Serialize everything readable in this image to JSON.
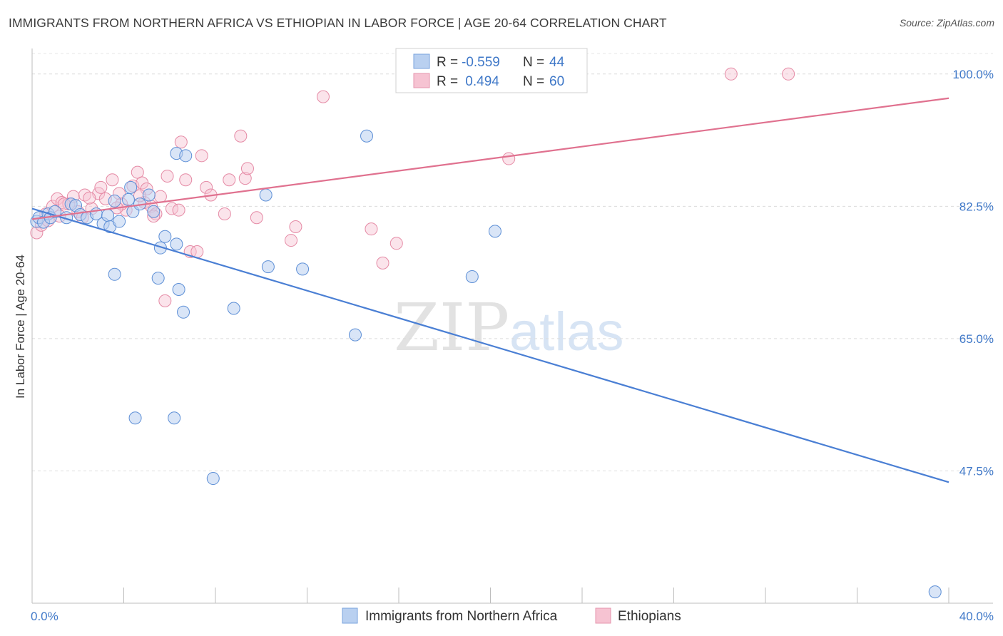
{
  "title": "IMMIGRANTS FROM NORTHERN AFRICA VS ETHIOPIAN IN LABOR FORCE | AGE 20-64 CORRELATION CHART",
  "source": "Source: ZipAtlas.com",
  "watermark": {
    "zip": "ZIP",
    "atlas": "atlas"
  },
  "colors": {
    "blue": "#4a7fd4",
    "blue_fill": "#b9d0f0",
    "pink": "#e0718f",
    "pink_fill": "#f6c3d2",
    "tick_text": "#3f78c8"
  },
  "legend": {
    "rows": [
      {
        "r_label": "R = ",
        "r_value": "-0.559",
        "n_label": "N = ",
        "n_value": "44"
      },
      {
        "r_label": "R = ",
        "r_value": " 0.494",
        "n_label": "N = ",
        "n_value": "60"
      }
    ]
  },
  "chart_data": {
    "type": "scatter",
    "xlabel": "",
    "ylabel": "In Labor Force | Age 20-64",
    "xlim": [
      0,
      40
    ],
    "ylim": [
      30,
      103
    ],
    "x_tick_labels": [
      "0.0%",
      "40.0%"
    ],
    "y_ticks": [
      {
        "value": 47.5,
        "label": "47.5%"
      },
      {
        "value": 65.0,
        "label": "65.0%"
      },
      {
        "value": 82.5,
        "label": "82.5%"
      },
      {
        "value": 100.0,
        "label": "100.0%"
      }
    ],
    "grid": "horizontal dashed",
    "legend_position": "bottom",
    "series": [
      {
        "name": "Immigrants from Northern Africa",
        "color": "#4a7fd4",
        "trend": {
          "x": [
            0,
            40
          ],
          "y": [
            82.2,
            46.0
          ]
        },
        "points": [
          [
            0.2,
            80.5
          ],
          [
            0.3,
            81.0
          ],
          [
            0.5,
            80.4
          ],
          [
            0.7,
            81.5
          ],
          [
            0.8,
            81.0
          ],
          [
            1.0,
            81.8
          ],
          [
            1.5,
            81.0
          ],
          [
            1.7,
            82.8
          ],
          [
            1.9,
            82.6
          ],
          [
            2.1,
            81.4
          ],
          [
            2.4,
            81.0
          ],
          [
            2.8,
            81.5
          ],
          [
            3.1,
            80.2
          ],
          [
            3.3,
            81.3
          ],
          [
            3.6,
            83.2
          ],
          [
            3.4,
            79.8
          ],
          [
            3.8,
            80.5
          ],
          [
            4.4,
            81.8
          ],
          [
            4.2,
            83.4
          ],
          [
            4.3,
            85.0
          ],
          [
            4.7,
            82.8
          ],
          [
            5.1,
            84.0
          ],
          [
            5.3,
            81.8
          ],
          [
            5.6,
            77.0
          ],
          [
            5.8,
            78.5
          ],
          [
            6.3,
            77.5
          ],
          [
            3.6,
            73.5
          ],
          [
            5.5,
            73.0
          ],
          [
            6.4,
            71.5
          ],
          [
            6.6,
            68.5
          ],
          [
            8.8,
            69.0
          ],
          [
            10.3,
            74.5
          ],
          [
            11.8,
            74.2
          ],
          [
            14.1,
            65.5
          ],
          [
            6.3,
            89.5
          ],
          [
            6.7,
            89.2
          ],
          [
            10.2,
            84.0
          ],
          [
            14.6,
            91.8
          ],
          [
            4.5,
            54.5
          ],
          [
            6.2,
            54.5
          ],
          [
            7.9,
            46.5
          ],
          [
            19.2,
            73.2
          ],
          [
            20.2,
            79.2
          ],
          [
            39.4,
            31.5
          ]
        ]
      },
      {
        "name": "Ethiopians",
        "color": "#e0718f",
        "trend": {
          "x": [
            0,
            40
          ],
          "y": [
            80.8,
            96.8
          ]
        },
        "points": [
          [
            0.2,
            79.0
          ],
          [
            0.4,
            80.0
          ],
          [
            0.6,
            81.5
          ],
          [
            0.9,
            82.5
          ],
          [
            1.1,
            83.5
          ],
          [
            1.3,
            83.0
          ],
          [
            1.6,
            82.8
          ],
          [
            1.8,
            83.8
          ],
          [
            2.0,
            81.8
          ],
          [
            2.3,
            84.0
          ],
          [
            2.6,
            82.2
          ],
          [
            2.9,
            84.2
          ],
          [
            3.2,
            83.5
          ],
          [
            3.0,
            85.0
          ],
          [
            3.5,
            86.0
          ],
          [
            3.8,
            84.2
          ],
          [
            4.1,
            82.0
          ],
          [
            4.4,
            85.2
          ],
          [
            4.6,
            87.0
          ],
          [
            4.9,
            83.0
          ],
          [
            5.2,
            82.5
          ],
          [
            5.4,
            81.5
          ],
          [
            5.6,
            83.8
          ],
          [
            5.9,
            86.5
          ],
          [
            6.1,
            82.2
          ],
          [
            6.4,
            82.0
          ],
          [
            6.5,
            91.0
          ],
          [
            6.7,
            86.0
          ],
          [
            6.9,
            76.5
          ],
          [
            7.2,
            76.5
          ],
          [
            7.4,
            89.2
          ],
          [
            7.6,
            85.0
          ],
          [
            7.8,
            84.0
          ],
          [
            8.4,
            81.5
          ],
          [
            8.6,
            86.0
          ],
          [
            9.1,
            91.8
          ],
          [
            9.3,
            86.2
          ],
          [
            9.4,
            87.5
          ],
          [
            9.8,
            81.0
          ],
          [
            11.3,
            78.0
          ],
          [
            11.5,
            79.8
          ],
          [
            12.7,
            97.0
          ],
          [
            14.8,
            79.5
          ],
          [
            15.3,
            75.0
          ],
          [
            15.9,
            77.6
          ],
          [
            20.8,
            88.8
          ],
          [
            30.5,
            100.0
          ],
          [
            33.0,
            100.0
          ],
          [
            5.8,
            70.0
          ],
          [
            1.2,
            81.2
          ],
          [
            2.2,
            81.0
          ],
          [
            3.9,
            82.8
          ],
          [
            4.8,
            85.6
          ],
          [
            5.0,
            84.8
          ],
          [
            5.3,
            81.2
          ],
          [
            1.4,
            82.8
          ],
          [
            0.7,
            80.6
          ],
          [
            2.5,
            83.6
          ],
          [
            3.7,
            82.3
          ],
          [
            4.7,
            83.9
          ]
        ]
      }
    ]
  }
}
